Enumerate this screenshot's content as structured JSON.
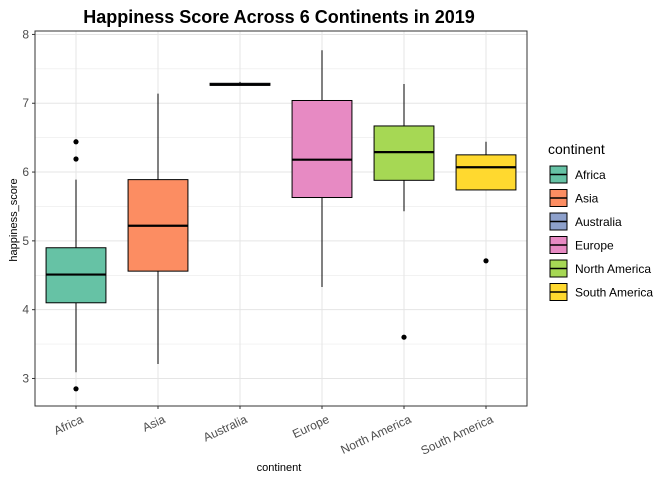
{
  "chart_data": {
    "type": "boxplot",
    "title": "Happiness Score Across 6 Continents in 2019",
    "xlabel": "continent",
    "ylabel": "happiness_score",
    "ylim": [
      2.6,
      8.05
    ],
    "yticks": [
      3,
      4,
      5,
      6,
      7,
      8
    ],
    "grid": true,
    "legend": {
      "title": "continent",
      "position": "right"
    },
    "categories": [
      "Africa",
      "Asia",
      "Australia",
      "Europe",
      "North America",
      "South America"
    ],
    "series": [
      {
        "name": "Africa",
        "color": "#66C2A5",
        "whisker_low": 3.09,
        "q1": 4.1,
        "median": 4.51,
        "q3": 4.9,
        "whisker_high": 5.89,
        "outliers": [
          6.44,
          6.19,
          2.85
        ]
      },
      {
        "name": "Asia",
        "color": "#FC8D62",
        "whisker_low": 3.21,
        "q1": 4.56,
        "median": 5.22,
        "q3": 5.89,
        "whisker_high": 7.14,
        "outliers": []
      },
      {
        "name": "Australia",
        "color": "#8DA0CB",
        "whisker_low": 7.26,
        "q1": 7.26,
        "median": 7.27,
        "q3": 7.29,
        "whisker_high": 7.31,
        "outliers": []
      },
      {
        "name": "Europe",
        "color": "#E78AC3",
        "whisker_low": 4.33,
        "q1": 5.63,
        "median": 6.18,
        "q3": 7.04,
        "whisker_high": 7.77,
        "outliers": []
      },
      {
        "name": "North America",
        "color": "#A6D854",
        "whisker_low": 5.43,
        "q1": 5.88,
        "median": 6.29,
        "q3": 6.67,
        "whisker_high": 7.28,
        "outliers": [
          3.6
        ]
      },
      {
        "name": "South America",
        "color": "#FFD92F",
        "whisker_low": 5.74,
        "q1": 5.74,
        "median": 6.07,
        "q3": 6.25,
        "whisker_high": 6.44,
        "outliers": [
          4.71
        ]
      }
    ]
  }
}
